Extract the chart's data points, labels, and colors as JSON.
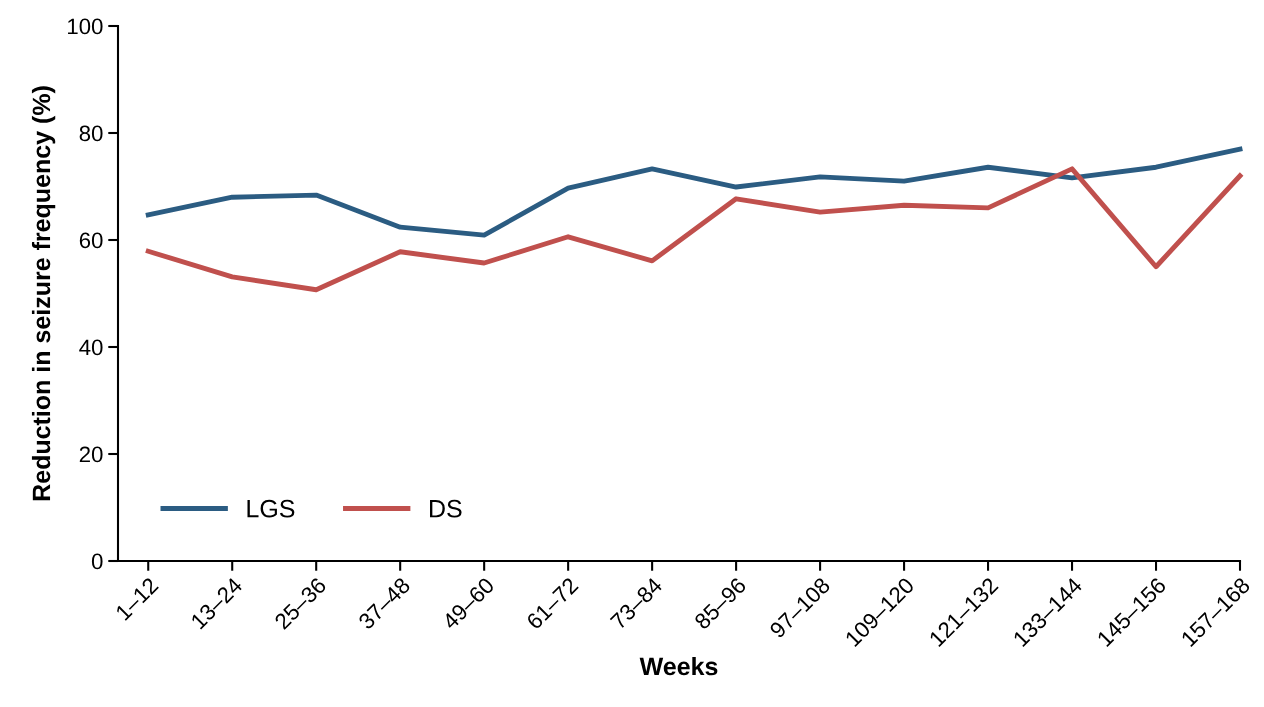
{
  "chart_data": {
    "type": "line",
    "xlabel": "Weeks",
    "ylabel": "Reduction in seizure frequency (%)",
    "categories": [
      "1–12",
      "13–24",
      "25–36",
      "37–48",
      "49–60",
      "61–72",
      "73–84",
      "85–96",
      "97–108",
      "109–120",
      "121–132",
      "133–144",
      "145–156",
      "157–168"
    ],
    "series": [
      {
        "name": "LGS",
        "color": "#2b5c82",
        "values": [
          64.7,
          68.0,
          68.4,
          62.4,
          60.9,
          69.7,
          73.3,
          69.9,
          71.8,
          71.0,
          73.6,
          71.6,
          73.6,
          77.0
        ]
      },
      {
        "name": "DS",
        "color": "#c0504d",
        "values": [
          57.9,
          53.1,
          50.7,
          57.8,
          55.7,
          60.6,
          56.1,
          67.7,
          65.2,
          66.5,
          66.0,
          73.3,
          55.0,
          72.0
        ]
      }
    ],
    "ylim": [
      0,
      100
    ],
    "yticks": [
      0,
      20,
      40,
      60,
      80,
      100
    ],
    "grid": false,
    "legend": "bottom left",
    "marker": "none",
    "line_style": "solid"
  }
}
